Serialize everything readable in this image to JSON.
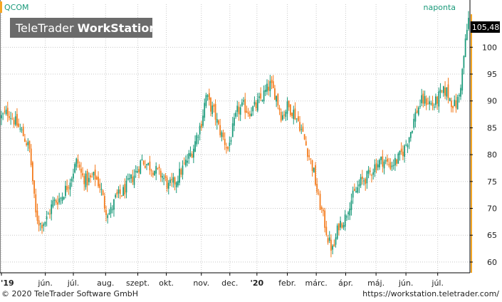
{
  "chart_data": {
    "type": "candlestick",
    "symbol": "QCOM",
    "period_label": "naponta",
    "last_price": "105,48",
    "watermark": {
      "prefix": "TeleTrader ",
      "suffix": "WorkStation"
    },
    "ylim": [
      58,
      108
    ],
    "y_ticks": [
      60,
      65,
      70,
      75,
      80,
      85,
      90,
      95,
      100
    ],
    "x_ticks": [
      {
        "label": "'19",
        "t": 0.0,
        "bold": true
      },
      {
        "label": "jún.",
        "t": 0.094
      },
      {
        "label": "júl.",
        "t": 0.154
      },
      {
        "label": "aug.",
        "t": 0.223
      },
      {
        "label": "szept.",
        "t": 0.292
      },
      {
        "label": "okt.",
        "t": 0.353
      },
      {
        "label": "nov.",
        "t": 0.428
      },
      {
        "label": "dec.",
        "t": 0.489
      },
      {
        "label": "'20",
        "t": 0.547,
        "bold": true
      },
      {
        "label": "febr.",
        "t": 0.612
      },
      {
        "label": "márc.",
        "t": 0.674
      },
      {
        "label": "ápr.",
        "t": 0.737
      },
      {
        "label": "máj.",
        "t": 0.802
      },
      {
        "label": "jún.",
        "t": 0.866
      },
      {
        "label": "júl.",
        "t": 0.934
      }
    ],
    "close_path": [
      [
        0.0,
        87
      ],
      [
        0.015,
        88
      ],
      [
        0.03,
        86
      ],
      [
        0.045,
        84
      ],
      [
        0.06,
        81
      ],
      [
        0.065,
        77
      ],
      [
        0.073,
        69
      ],
      [
        0.083,
        67
      ],
      [
        0.097,
        68
      ],
      [
        0.11,
        71
      ],
      [
        0.127,
        72
      ],
      [
        0.14,
        74
      ],
      [
        0.15,
        76
      ],
      [
        0.162,
        79
      ],
      [
        0.172,
        76
      ],
      [
        0.185,
        75
      ],
      [
        0.2,
        76
      ],
      [
        0.212,
        74
      ],
      [
        0.222,
        70
      ],
      [
        0.232,
        69
      ],
      [
        0.245,
        72
      ],
      [
        0.26,
        73
      ],
      [
        0.275,
        75
      ],
      [
        0.29,
        77
      ],
      [
        0.3,
        79
      ],
      [
        0.315,
        78
      ],
      [
        0.33,
        77
      ],
      [
        0.345,
        76
      ],
      [
        0.358,
        74
      ],
      [
        0.372,
        75
      ],
      [
        0.385,
        77
      ],
      [
        0.398,
        79
      ],
      [
        0.41,
        81
      ],
      [
        0.42,
        84
      ],
      [
        0.428,
        86
      ],
      [
        0.438,
        91
      ],
      [
        0.447,
        89
      ],
      [
        0.455,
        88
      ],
      [
        0.465,
        85
      ],
      [
        0.475,
        83
      ],
      [
        0.485,
        81
      ],
      [
        0.493,
        84
      ],
      [
        0.505,
        88
      ],
      [
        0.518,
        89
      ],
      [
        0.53,
        88
      ],
      [
        0.545,
        89
      ],
      [
        0.56,
        91
      ],
      [
        0.575,
        93
      ],
      [
        0.588,
        91
      ],
      [
        0.6,
        87
      ],
      [
        0.612,
        89
      ],
      [
        0.625,
        88
      ],
      [
        0.637,
        86
      ],
      [
        0.648,
        83
      ],
      [
        0.658,
        80
      ],
      [
        0.668,
        77
      ],
      [
        0.678,
        72
      ],
      [
        0.69,
        68
      ],
      [
        0.7,
        64
      ],
      [
        0.71,
        62
      ],
      [
        0.722,
        67
      ],
      [
        0.735,
        68
      ],
      [
        0.745,
        71
      ],
      [
        0.758,
        73
      ],
      [
        0.77,
        75
      ],
      [
        0.785,
        76
      ],
      [
        0.8,
        78
      ],
      [
        0.815,
        79
      ],
      [
        0.832,
        78
      ],
      [
        0.848,
        79
      ],
      [
        0.862,
        81
      ],
      [
        0.875,
        84
      ],
      [
        0.888,
        88
      ],
      [
        0.9,
        90
      ],
      [
        0.912,
        90
      ],
      [
        0.925,
        89
      ],
      [
        0.938,
        91
      ],
      [
        0.952,
        92
      ],
      [
        0.962,
        90
      ],
      [
        0.972,
        89
      ],
      [
        0.98,
        91
      ],
      [
        0.986,
        95
      ],
      [
        0.992,
        100
      ],
      [
        1.0,
        105.48
      ]
    ]
  },
  "footer": {
    "copyright": "© 2020 TeleTrader Software GmbH",
    "url": "https://workstation.teletrader.com/"
  },
  "colors": {
    "up": "#1a9a7a",
    "down": "#f47a1a",
    "grid": "#c8c8c8",
    "label_box": "#000000",
    "accent_line": "#f5a623"
  }
}
